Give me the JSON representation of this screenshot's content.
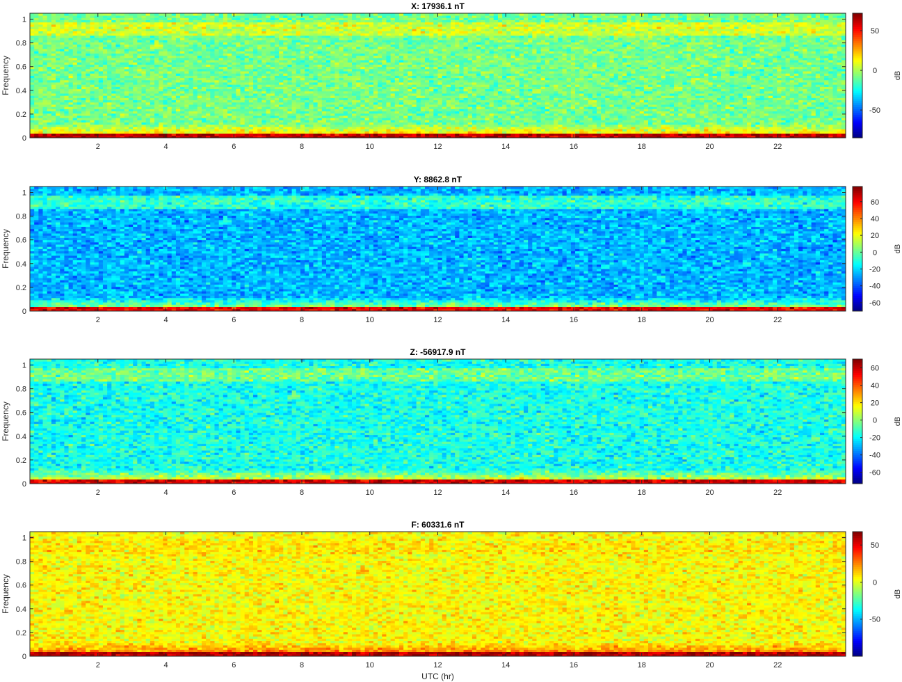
{
  "figure": {
    "xlabel": "UTC (hr)",
    "colormap": "jet"
  },
  "chart_data": [
    {
      "type": "heatmap",
      "title": "X: 17936.1 nT",
      "ylabel": "Frequency",
      "xlim": [
        0,
        24
      ],
      "ylim": [
        0,
        1.05
      ],
      "x_ticks": [
        2,
        4,
        6,
        8,
        10,
        12,
        14,
        16,
        18,
        20,
        22
      ],
      "y_ticks": [
        0,
        0.2,
        0.4,
        0.6,
        0.8,
        1
      ],
      "colorbar": {
        "label": "dB",
        "clim": [
          -85,
          72
        ],
        "ticks": [
          -50,
          0,
          50
        ]
      },
      "profile": {
        "background_db": -8,
        "high_band_db": 6,
        "low_band_db": 28,
        "edge_db": 62
      }
    },
    {
      "type": "heatmap",
      "title": "Y: 8862.8 nT",
      "ylabel": "Frequency",
      "xlim": [
        0,
        24
      ],
      "ylim": [
        0,
        1.05
      ],
      "x_ticks": [
        2,
        4,
        6,
        8,
        10,
        12,
        14,
        16,
        18,
        20,
        22
      ],
      "y_ticks": [
        0,
        0.2,
        0.4,
        0.6,
        0.8,
        1
      ],
      "colorbar": {
        "label": "dB",
        "clim": [
          -70,
          78
        ],
        "ticks": [
          -60,
          -40,
          -20,
          0,
          20,
          40,
          60
        ]
      },
      "profile": {
        "background_db": -25,
        "high_band_db": -8,
        "low_band_db": 20,
        "edge_db": 62
      }
    },
    {
      "type": "heatmap",
      "title": "Z: -56917.9 nT",
      "ylabel": "Frequency",
      "xlim": [
        0,
        24
      ],
      "ylim": [
        0,
        1.05
      ],
      "x_ticks": [
        2,
        4,
        6,
        8,
        10,
        12,
        14,
        16,
        18,
        20,
        22
      ],
      "y_ticks": [
        0,
        0.2,
        0.4,
        0.6,
        0.8,
        1
      ],
      "colorbar": {
        "label": "dB",
        "clim": [
          -73,
          70
        ],
        "ticks": [
          -60,
          -40,
          -20,
          0,
          20,
          40,
          60
        ]
      },
      "profile": {
        "background_db": -16,
        "high_band_db": -4,
        "low_band_db": 22,
        "edge_db": 58
      }
    },
    {
      "type": "heatmap",
      "title": "F: 60331.6 nT",
      "ylabel": "Frequency",
      "xlim": [
        0,
        24
      ],
      "ylim": [
        0,
        1.05
      ],
      "x_ticks": [
        2,
        4,
        6,
        8,
        10,
        12,
        14,
        16,
        18,
        20,
        22
      ],
      "y_ticks": [
        0,
        0.2,
        0.4,
        0.6,
        0.8,
        1
      ],
      "colorbar": {
        "label": "dB",
        "clim": [
          -100,
          68
        ],
        "ticks": [
          -50,
          0,
          50
        ]
      },
      "profile": {
        "background_db": 5,
        "high_band_db": 8,
        "low_band_db": 35,
        "edge_db": 60
      }
    }
  ]
}
